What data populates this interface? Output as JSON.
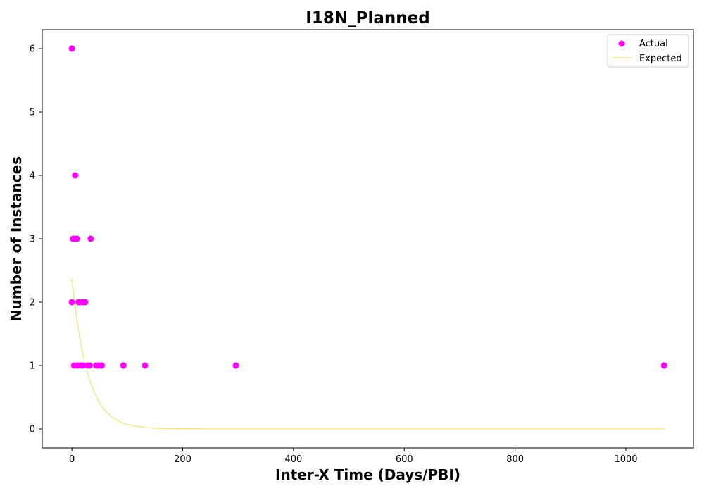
{
  "chart_data": {
    "type": "scatter",
    "title": "I18N_Planned",
    "xlabel": "Inter-X Time (Days/PBI)",
    "ylabel": "Number of Instances",
    "xlim": [
      -53.5,
      1122
    ],
    "ylim": [
      -0.3,
      6.3
    ],
    "xticks": [
      0,
      200,
      400,
      600,
      800,
      1000
    ],
    "yticks": [
      0,
      1,
      2,
      3,
      4,
      5,
      6
    ],
    "grid": false,
    "legend_position": "top-right",
    "colors": {
      "actual": "#ff00ff",
      "expected": "#f0e68c"
    },
    "series": [
      {
        "name": "Actual",
        "kind": "scatter",
        "points": [
          {
            "x": 0,
            "y": 6
          },
          {
            "x": 6,
            "y": 4
          },
          {
            "x": 2,
            "y": 3
          },
          {
            "x": 5,
            "y": 3
          },
          {
            "x": 9,
            "y": 3
          },
          {
            "x": 34,
            "y": 3
          },
          {
            "x": 0,
            "y": 2
          },
          {
            "x": 12,
            "y": 2
          },
          {
            "x": 14,
            "y": 2
          },
          {
            "x": 20,
            "y": 2
          },
          {
            "x": 24,
            "y": 2
          },
          {
            "x": 4,
            "y": 1
          },
          {
            "x": 10,
            "y": 1
          },
          {
            "x": 16,
            "y": 1
          },
          {
            "x": 20,
            "y": 1
          },
          {
            "x": 29,
            "y": 1
          },
          {
            "x": 32,
            "y": 1
          },
          {
            "x": 44,
            "y": 1
          },
          {
            "x": 49,
            "y": 1
          },
          {
            "x": 54,
            "y": 1
          },
          {
            "x": 93,
            "y": 1
          },
          {
            "x": 132,
            "y": 1
          },
          {
            "x": 296,
            "y": 1
          },
          {
            "x": 1069,
            "y": 1
          }
        ]
      },
      {
        "name": "Expected",
        "kind": "line",
        "function": "exponential",
        "amplitude": 2.37,
        "decay_rate": 0.0349,
        "x_range": [
          0,
          1069
        ]
      }
    ]
  }
}
